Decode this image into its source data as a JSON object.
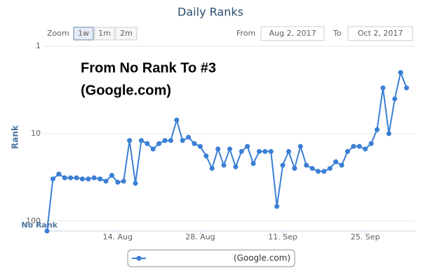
{
  "range_selector": {
    "zoom_label": "Zoom",
    "buttons": [
      "1w",
      "1m",
      "2m"
    ],
    "from_label": "From",
    "from_date": "Aug 2, 2017",
    "to_label": "To",
    "to_date": "Oct 2, 2017"
  },
  "chart_data": {
    "type": "line",
    "title": "Daily Ranks",
    "y_label": "Rank",
    "annotation": [
      "From No Rank To #3",
      "(Google.com)"
    ],
    "categories": [
      null,
      null,
      null,
      null,
      null,
      null,
      null,
      null,
      null,
      null,
      null,
      null,
      "14. Aug",
      null,
      null,
      null,
      null,
      null,
      null,
      null,
      null,
      null,
      null,
      null,
      null,
      null,
      "28. Aug",
      null,
      null,
      null,
      null,
      null,
      null,
      null,
      null,
      null,
      null,
      null,
      null,
      null,
      "11. Sep",
      null,
      null,
      null,
      null,
      null,
      null,
      null,
      null,
      null,
      null,
      null,
      null,
      null,
      "25. Sep",
      null,
      null,
      null,
      null,
      null,
      null,
      null
    ],
    "series": [
      {
        "name": "(Google.com)",
        "color": "#3a7fd5",
        "values": [
          130,
          33,
          29,
          32,
          32,
          32,
          33,
          33,
          32,
          33,
          35,
          30,
          36,
          35,
          12,
          37,
          12,
          13,
          15,
          13,
          12,
          12,
          7,
          12,
          11,
          13,
          14,
          18,
          25,
          15,
          23,
          15,
          24,
          16,
          14,
          22,
          16,
          16,
          16,
          68,
          23,
          16,
          25,
          14,
          23,
          25,
          27,
          27,
          25,
          21,
          23,
          16,
          14,
          14,
          15,
          13,
          9,
          3,
          10,
          4,
          2,
          3
        ]
      }
    ],
    "ylim": [
      1,
      130
    ],
    "yticks": [
      1,
      10,
      100,
      {
        "value": 130,
        "label": "No Rank"
      }
    ],
    "y_log": true,
    "y_reversed": true,
    "grid": true
  }
}
